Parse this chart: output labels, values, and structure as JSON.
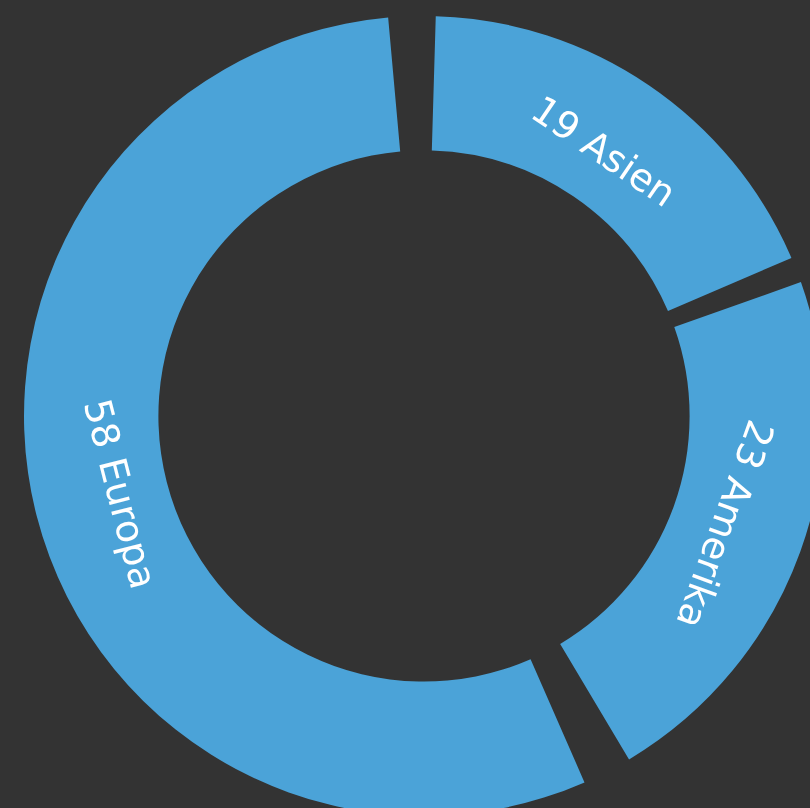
{
  "chart_data": {
    "type": "donut",
    "categories": [
      "Asien",
      "Amerika",
      "Europa"
    ],
    "values": [
      19,
      23,
      58
    ],
    "colors": [
      "#4ba3d8",
      "#4ba3d8",
      "#4ba3d8"
    ],
    "data_labels": true,
    "legend": false
  }
}
